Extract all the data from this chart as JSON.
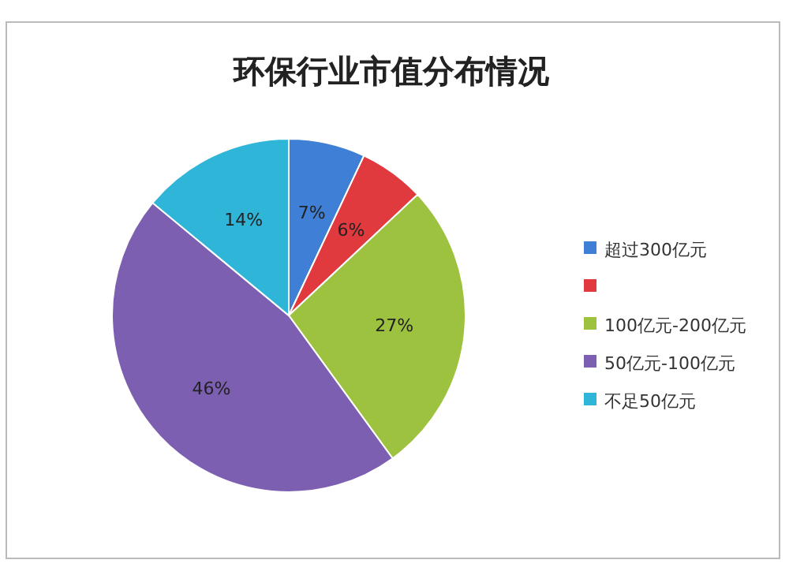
{
  "chart_data": {
    "type": "pie",
    "title": "环保行业市值分布情况",
    "categories": [
      "超过300亿元",
      null,
      "100亿元-200亿元",
      "50亿元-100亿元",
      "不足50亿元"
    ],
    "values": [
      7,
      6,
      27,
      46,
      14
    ],
    "colors": [
      "#3f7fd6",
      "#e0393e",
      "#9cc23f",
      "#7d5fb2",
      "#2fb5d8"
    ],
    "value_labels": [
      "7%",
      "6%",
      "27%",
      "46%",
      "14%"
    ],
    "legend": "right"
  }
}
